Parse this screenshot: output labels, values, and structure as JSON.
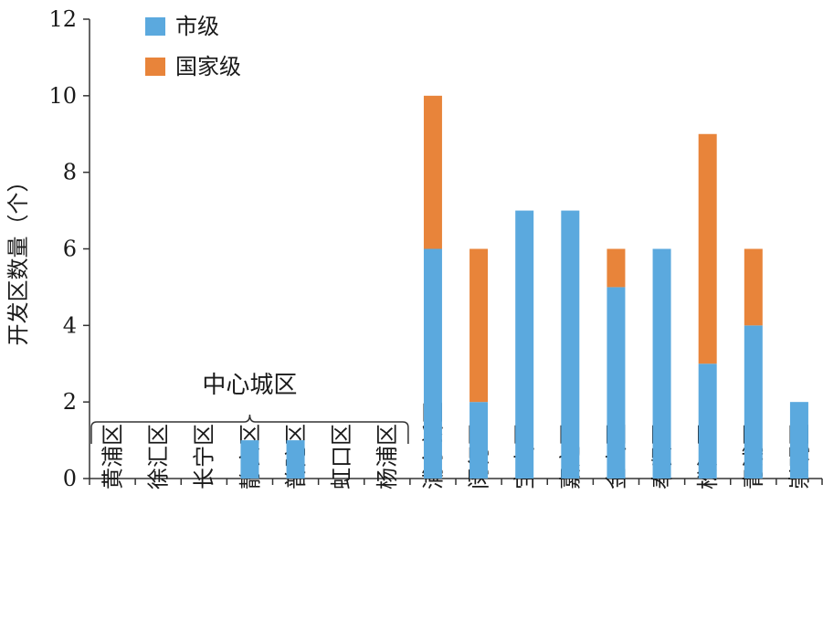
{
  "chart_data": {
    "type": "bar",
    "stacked": true,
    "title": "",
    "xlabel": "",
    "ylabel": "开发区数量（个）",
    "ylim": [
      0,
      12
    ],
    "yticks": [
      0,
      2,
      4,
      6,
      8,
      10,
      12
    ],
    "grid": false,
    "legend_position": "top-left",
    "categories": [
      "黄浦区",
      "徐汇区",
      "长宁区",
      "静安区",
      "普陀区",
      "虹口区",
      "杨浦区",
      "浦东新区",
      "闵行区",
      "宝山区",
      "嘉定区",
      "金山区",
      "奉贤区",
      "松江区",
      "青浦区",
      "崇明区"
    ],
    "series": [
      {
        "name": "市级",
        "color": "#5ba9de",
        "values": [
          0,
          0,
          0,
          1,
          1,
          0,
          0,
          6,
          2,
          7,
          7,
          5,
          6,
          3,
          4,
          2
        ]
      },
      {
        "name": "国家级",
        "color": "#e8843a",
        "values": [
          0,
          0,
          0,
          0,
          0,
          0,
          0,
          4,
          4,
          0,
          0,
          1,
          0,
          6,
          2,
          0
        ]
      }
    ],
    "annotations": [
      {
        "text": "中心城区",
        "type": "bracket",
        "from_category": 0,
        "to_category": 6
      }
    ]
  }
}
